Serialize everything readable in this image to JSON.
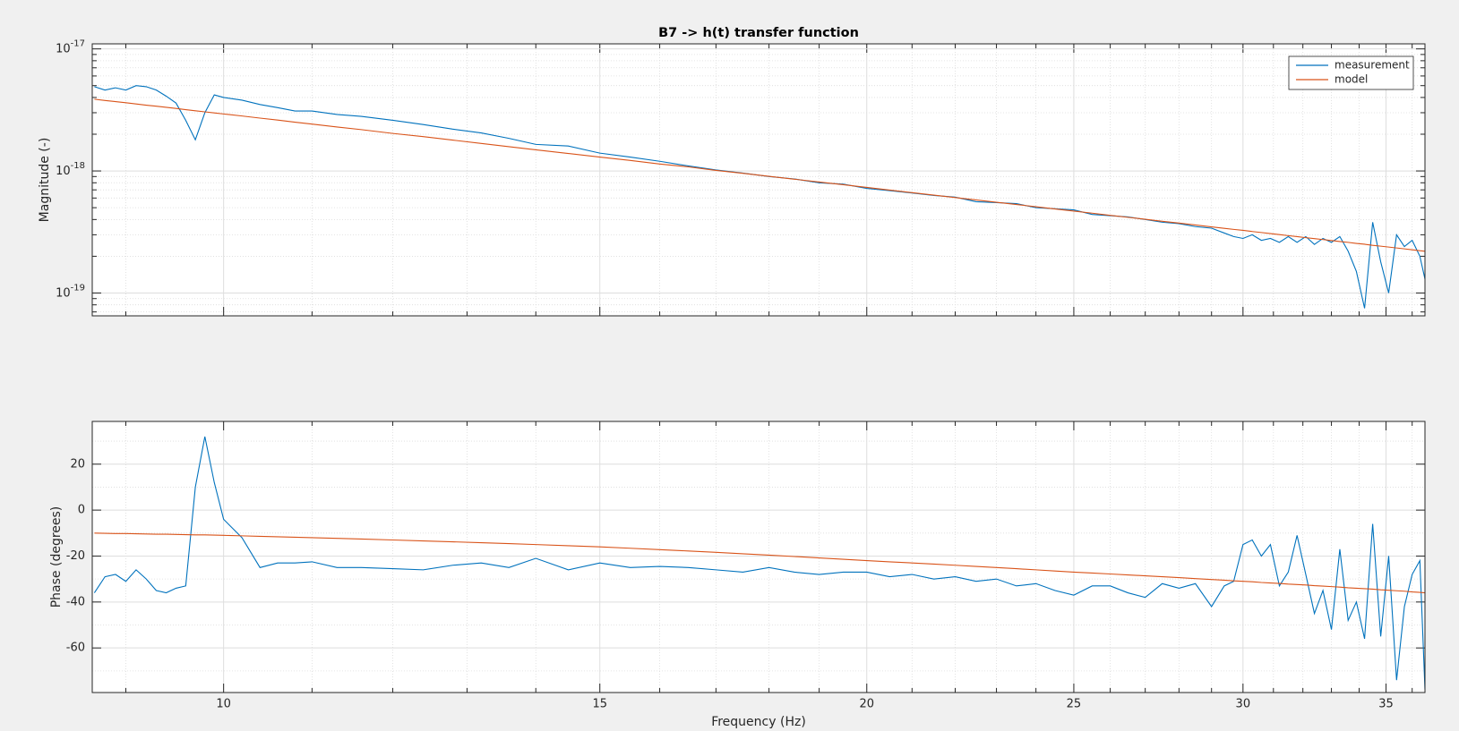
{
  "chart_data": [
    {
      "type": "line",
      "title": "B7 -> h(t) transfer function",
      "ylabel": "Magnitude (-)",
      "x": [
        8.7,
        8.8,
        8.9,
        9.0,
        9.1,
        9.2,
        9.3,
        9.4,
        9.5,
        9.6,
        9.7,
        9.8,
        9.9,
        10.0,
        10.2,
        10.4,
        10.6,
        10.8,
        11.0,
        11.3,
        11.6,
        12.0,
        12.4,
        12.8,
        13.2,
        13.6,
        14.0,
        14.5,
        15.0,
        15.5,
        16,
        16.5,
        17,
        17.5,
        18,
        18.5,
        19,
        19.5,
        20,
        20.5,
        21,
        21.5,
        22,
        22.5,
        23,
        23.5,
        24,
        24.5,
        25,
        25.5,
        26,
        26.5,
        27,
        27.5,
        28,
        28.5,
        29,
        29.4,
        29.7,
        30,
        30.3,
        30.6,
        30.9,
        31.2,
        31.5,
        31.8,
        32.1,
        32.4,
        32.7,
        33,
        33.3,
        33.6,
        33.9,
        34.2,
        34.5,
        34.8,
        35.1,
        35.4,
        35.7,
        36,
        36.3,
        36.5
      ],
      "series": [
        {
          "name": "measurement",
          "color": "#0072bd",
          "values": [
            4.9e-18,
            4.6e-18,
            4.8e-18,
            4.6e-18,
            5e-18,
            4.9e-18,
            4.6e-18,
            4.1e-18,
            3.6e-18,
            2.6e-18,
            1.8e-18,
            3e-18,
            4.2e-18,
            4e-18,
            3.8e-18,
            3.5e-18,
            3.3e-18,
            3.1e-18,
            3.1e-18,
            2.9e-18,
            2.8e-18,
            2.6e-18,
            2.4e-18,
            2.2e-18,
            2.05e-18,
            1.85e-18,
            1.65e-18,
            1.6e-18,
            1.4e-18,
            1.3e-18,
            1.2e-18,
            1.1e-18,
            1.02e-18,
            9.6e-19,
            9e-19,
            8.6e-19,
            8e-19,
            7.8e-19,
            7.2e-19,
            6.9e-19,
            6.6e-19,
            6.3e-19,
            6.1e-19,
            5.6e-19,
            5.5e-19,
            5.4e-19,
            5e-19,
            4.9e-19,
            4.8e-19,
            4.4e-19,
            4.3e-19,
            4.2e-19,
            4e-19,
            3.8e-19,
            3.7e-19,
            3.5e-19,
            3.4e-19,
            3.1e-19,
            2.9e-19,
            2.8e-19,
            3e-19,
            2.7e-19,
            2.8e-19,
            2.6e-19,
            2.9e-19,
            2.6e-19,
            2.9e-19,
            2.5e-19,
            2.8e-19,
            2.6e-19,
            2.9e-19,
            2.2e-19,
            1.5e-19,
            7.5e-20,
            3.8e-19,
            1.8e-19,
            1e-19,
            3e-19,
            2.4e-19,
            2.7e-19,
            2e-19,
            1.3e-19
          ]
        },
        {
          "name": "model",
          "color": "#d95319",
          "values": [
            3.87e-18,
            3.78e-18,
            3.7e-18,
            3.62e-18,
            3.54e-18,
            3.46e-18,
            3.39e-18,
            3.32e-18,
            3.25e-18,
            3.18e-18,
            3.11e-18,
            3.05e-18,
            2.99e-18,
            2.93e-18,
            2.82e-18,
            2.71e-18,
            2.61e-18,
            2.51e-18,
            2.42e-18,
            2.29e-18,
            2.18e-18,
            2.03e-18,
            1.91e-18,
            1.79e-18,
            1.68e-18,
            1.58e-18,
            1.49e-18,
            1.39e-18,
            1.3e-18,
            1.22e-18,
            1.14e-18,
            1.08e-18,
            1.01e-18,
            9.57e-19,
            9.04e-19,
            8.56e-19,
            8.12e-19,
            7.71e-19,
            7.33e-19,
            6.97e-19,
            6.64e-19,
            6.34e-19,
            6.05e-19,
            5.79e-19,
            5.54e-19,
            5.31e-19,
            5.09e-19,
            4.88e-19,
            4.69e-19,
            4.51e-19,
            4.33e-19,
            4.17e-19,
            4.02e-19,
            3.87e-19,
            3.74e-19,
            3.61e-19,
            3.48e-19,
            3.39e-19,
            3.32e-19,
            3.26e-19,
            3.19e-19,
            3.13e-19,
            3.07e-19,
            3.01e-19,
            2.95e-19,
            2.9e-19,
            2.84e-19,
            2.79e-19,
            2.74e-19,
            2.69e-19,
            2.64e-19,
            2.6e-19,
            2.55e-19,
            2.51e-19,
            2.46e-19,
            2.42e-19,
            2.38e-19,
            2.34e-19,
            2.3e-19,
            2.26e-19,
            2.22e-19,
            2.2e-19
          ]
        }
      ],
      "xscale": "log",
      "yscale": "log",
      "xlim": [
        8.68,
        36.5
      ],
      "ylim": [
        6.5e-20,
        1.1e-17
      ],
      "xticks": [
        10,
        15,
        20,
        25,
        30,
        35
      ],
      "xminorticks": [
        9,
        11,
        12,
        13,
        14,
        16,
        17,
        18,
        19,
        21,
        22,
        23,
        24,
        26,
        27,
        28,
        29,
        31,
        32,
        33,
        34,
        36
      ],
      "yticks": [
        {
          "value": 1e-19,
          "label": "10^-19"
        },
        {
          "value": 1e-18,
          "label": "10^-18"
        },
        {
          "value": 1e-17,
          "label": "10^-17"
        }
      ],
      "yminorticks": [
        7e-20,
        8e-20,
        9e-20,
        2e-19,
        3e-19,
        4e-19,
        5e-19,
        6e-19,
        7e-19,
        8e-19,
        9e-19,
        2e-18,
        3e-18,
        4e-18,
        5e-18,
        6e-18,
        7e-18,
        8e-18,
        9e-18
      ],
      "grid": true,
      "legend": "northeast"
    },
    {
      "type": "line",
      "xlabel": "Frequency (Hz)",
      "ylabel": "Phase (degrees)",
      "x": [
        8.7,
        8.8,
        8.9,
        9.0,
        9.1,
        9.2,
        9.3,
        9.4,
        9.5,
        9.6,
        9.7,
        9.8,
        9.9,
        10.0,
        10.2,
        10.4,
        10.6,
        10.8,
        11.0,
        11.3,
        11.6,
        12.0,
        12.4,
        12.8,
        13.2,
        13.6,
        14.0,
        14.5,
        15.0,
        15.5,
        16,
        16.5,
        17,
        17.5,
        18,
        18.5,
        19,
        19.5,
        20,
        20.5,
        21,
        21.5,
        22,
        22.5,
        23,
        23.5,
        24,
        24.5,
        25,
        25.5,
        26,
        26.5,
        27,
        27.5,
        28,
        28.5,
        29,
        29.4,
        29.7,
        30,
        30.3,
        30.6,
        30.9,
        31.2,
        31.5,
        31.8,
        32.1,
        32.4,
        32.7,
        33,
        33.3,
        33.6,
        33.9,
        34.2,
        34.5,
        34.8,
        35.1,
        35.4,
        35.7,
        36,
        36.3,
        36.5
      ],
      "series": [
        {
          "name": "measurement",
          "color": "#0072bd",
          "values": [
            -36,
            -29,
            -28,
            -31,
            -26,
            -30,
            -35,
            -36,
            -34,
            -33,
            10,
            32,
            12,
            -4,
            -12,
            -25,
            -23,
            -23,
            -22.5,
            -25,
            -25,
            -25.5,
            -26,
            -24,
            -23,
            -25,
            -21,
            -26,
            -23,
            -25,
            -24.5,
            -25,
            -26,
            -27,
            -25,
            -27,
            -28,
            -27,
            -27,
            -29,
            -28,
            -30,
            -29,
            -31,
            -30,
            -33,
            -32,
            -35,
            -37,
            -33,
            -33,
            -36,
            -38,
            -32,
            -34,
            -32,
            -42,
            -33,
            -31,
            -15,
            -13,
            -20,
            -15,
            -33,
            -27,
            -11,
            -28,
            -45,
            -35,
            -52,
            -17,
            -48,
            -40,
            -56,
            -6,
            -55,
            -20,
            -74,
            -42,
            -28,
            -22,
            -78
          ]
        },
        {
          "name": "model",
          "color": "#d95319",
          "values": [
            -10.0,
            -10.1,
            -10.2,
            -10.2,
            -10.3,
            -10.4,
            -10.5,
            -10.5,
            -10.6,
            -10.7,
            -10.8,
            -10.8,
            -10.9,
            -11.0,
            -11.2,
            -11.4,
            -11.6,
            -11.8,
            -12.0,
            -12.3,
            -12.6,
            -13.0,
            -13.4,
            -13.8,
            -14.2,
            -14.6,
            -15.0,
            -15.5,
            -16.0,
            -16.6,
            -17.2,
            -17.8,
            -18.4,
            -19.0,
            -19.6,
            -20.2,
            -20.8,
            -21.4,
            -22.0,
            -22.5,
            -23.0,
            -23.5,
            -24.0,
            -24.5,
            -25.0,
            -25.5,
            -26.0,
            -26.5,
            -27.0,
            -27.4,
            -27.8,
            -28.2,
            -28.6,
            -29.0,
            -29.4,
            -29.8,
            -30.2,
            -30.5,
            -30.8,
            -31.0,
            -31.2,
            -31.5,
            -31.7,
            -31.9,
            -32.2,
            -32.4,
            -32.6,
            -32.9,
            -33.1,
            -33.3,
            -33.5,
            -33.8,
            -34.0,
            -34.2,
            -34.4,
            -34.7,
            -34.9,
            -35.1,
            -35.3,
            -35.6,
            -35.8,
            -36.0
          ]
        }
      ],
      "xscale": "log",
      "xlim": [
        8.68,
        36.5
      ],
      "ylim": [
        -79.4,
        38.6
      ],
      "xticks": [
        10,
        15,
        20,
        25,
        30,
        35
      ],
      "xminorticks": [
        9,
        11,
        12,
        13,
        14,
        16,
        17,
        18,
        19,
        21,
        22,
        23,
        24,
        26,
        27,
        28,
        29,
        31,
        32,
        33,
        34,
        36
      ],
      "yticks": [
        -60,
        -40,
        -20,
        0,
        20
      ],
      "yminorticks": [
        -70,
        -50,
        -30,
        -10,
        10,
        30
      ],
      "grid": true
    }
  ]
}
